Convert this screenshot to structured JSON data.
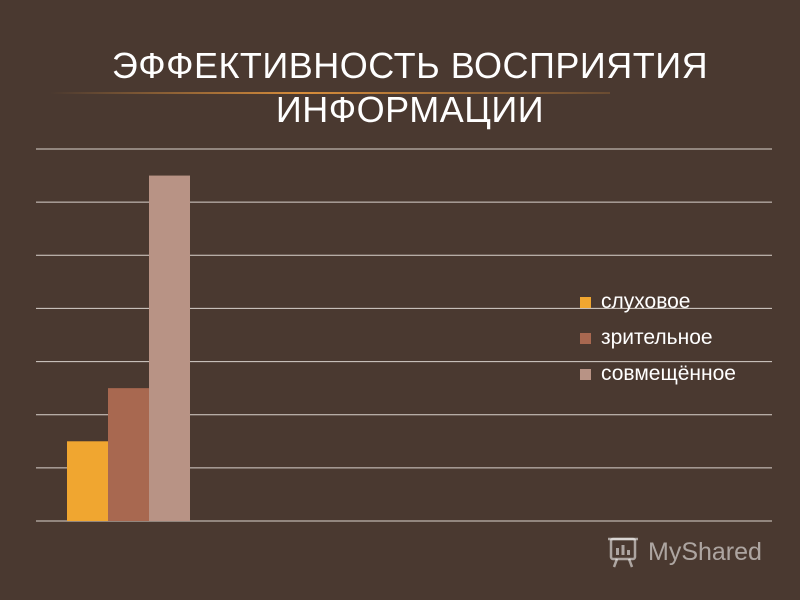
{
  "title": "ЭФФЕКТИВНОСТЬ ВОСПРИЯТИЯ ИНФОРМАЦИИ",
  "chart_data": {
    "type": "bar",
    "title": "ЭФФЕКТИВНОСТЬ ВОСПРИЯТИЯ ИНФОРМАЦИИ",
    "categories": [
      ""
    ],
    "series": [
      {
        "name": "слуховое",
        "values": [
          15
        ],
        "color": "#f0a630"
      },
      {
        "name": "зрительное",
        "values": [
          25
        ],
        "color": "#a86850"
      },
      {
        "name": "совмещённое",
        "values": [
          65
        ],
        "color": "#b89385"
      }
    ],
    "ylim": [
      0,
      70
    ],
    "grid": true,
    "legend_position": "right",
    "xlabel": "",
    "ylabel": ""
  },
  "watermark": {
    "text": "MyShared",
    "icon": "presentation-board-icon"
  }
}
